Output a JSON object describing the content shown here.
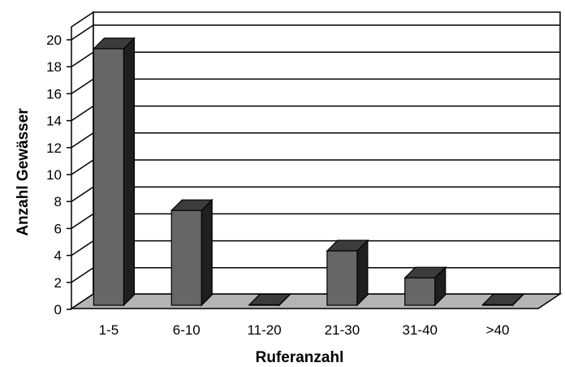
{
  "chart_data": {
    "type": "bar",
    "categories": [
      "1-5",
      "6-10",
      "11-20",
      "21-30",
      "31-40",
      ">40"
    ],
    "values": [
      20,
      8,
      1,
      5,
      3,
      1
    ],
    "xlabel": "Ruferanzahl",
    "ylabel": "Anzahl Gewässer",
    "ylim": [
      0,
      20
    ],
    "yticks": [
      0,
      2,
      4,
      6,
      8,
      10,
      12,
      14,
      16,
      18,
      20
    ],
    "grid": true,
    "style": "3d",
    "colors": {
      "bar_front": "#666666",
      "bar_side": "#1f1f1f",
      "bar_top": "#3c3c3c",
      "floor": "#b4b4b4",
      "wall": "#ffffff",
      "grid": "#000000"
    }
  }
}
